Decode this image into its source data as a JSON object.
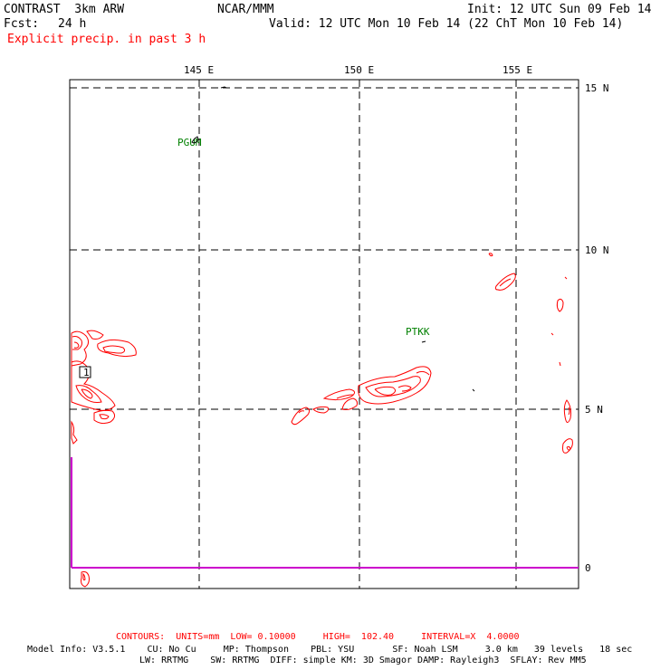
{
  "header": {
    "model": "CONTRAST  3km ARW",
    "org": "NCAR/MMM",
    "init": "Init: 12 UTC Sun 09 Feb 14",
    "fcst_label": "Fcst:",
    "fcst_value": "24 h",
    "valid": "Valid: 12 UTC Mon 10 Feb 14 (22 ChT Mon 10 Feb 14)",
    "field": "Explicit precip. in past 3 h"
  },
  "axes": {
    "lon_labels": [
      "145 E",
      "150 E",
      "155 E"
    ],
    "lat_labels": [
      "15 N",
      "10 N",
      "5 N",
      "0"
    ]
  },
  "stations": [
    "PGUM",
    "PTKK"
  ],
  "contour_label": "1",
  "footer": {
    "contours": "CONTOURS:  UNITS=mm  LOW= 0.10000     HIGH=  102.40     INTERVAL=X  4.0000",
    "model_info_1": "Model Info: V3.5.1    CU: No Cu     MP: Thompson    PBL: YSU       SF: Noah LSM     3.0 km   39 levels   18 sec",
    "model_info_2": "LW: RRTMG    SW: RRTMG  DIFF: simple KM: 3D Smagor DAMP: Rayleigh3  SFLAY: Rev MM5"
  },
  "colors": {
    "contour": "#ff0000",
    "station": "#008000",
    "equator": "#cc00cc",
    "text": "#000000"
  }
}
